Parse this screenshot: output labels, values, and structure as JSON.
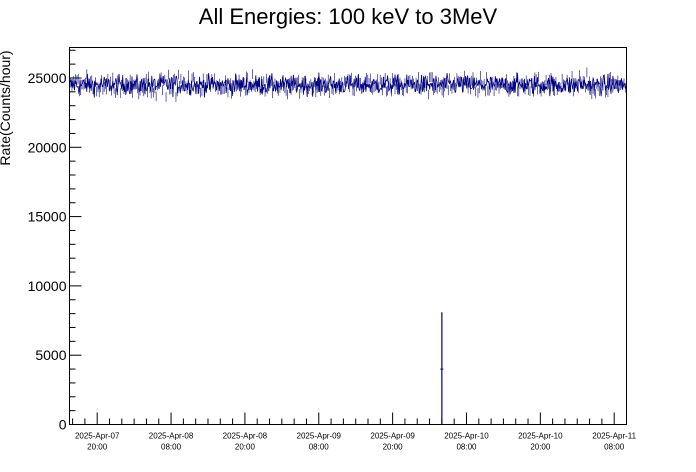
{
  "chart_data": {
    "type": "line",
    "title": "All Energies:  100 keV to 3MeV",
    "xlabel": "",
    "ylabel": "Rate(Counts/hour)",
    "ylim": [
      0,
      27200
    ],
    "xlim_hours_from_first_tick": [
      -4.5,
      86
    ],
    "y_ticks": [
      {
        "value": 0,
        "label": "0"
      },
      {
        "value": 5000,
        "label": "5000"
      },
      {
        "value": 10000,
        "label": "10000"
      },
      {
        "value": 15000,
        "label": "15000"
      },
      {
        "value": 20000,
        "label": "20000"
      },
      {
        "value": 25000,
        "label": "25000"
      }
    ],
    "x_ticks": [
      {
        "date": "2025-Apr-07",
        "time": "20:00"
      },
      {
        "date": "2025-Apr-08",
        "time": "08:00"
      },
      {
        "date": "2025-Apr-08",
        "time": "20:00"
      },
      {
        "date": "2025-Apr-09",
        "time": "08:00"
      },
      {
        "date": "2025-Apr-09",
        "time": "20:00"
      },
      {
        "date": "2025-Apr-10",
        "time": "08:00"
      },
      {
        "date": "2025-Apr-10",
        "time": "20:00"
      },
      {
        "date": "2025-Apr-11",
        "time": "08:00"
      }
    ],
    "series": [
      {
        "color": "#000080",
        "baseline_mean": 24500,
        "baseline_spread": 500,
        "dips": [
          {
            "time": "2025-Apr-10 04:00",
            "value": 4000,
            "max": 8100,
            "min": 0
          }
        ]
      }
    ],
    "grid": false,
    "legend": "none"
  }
}
